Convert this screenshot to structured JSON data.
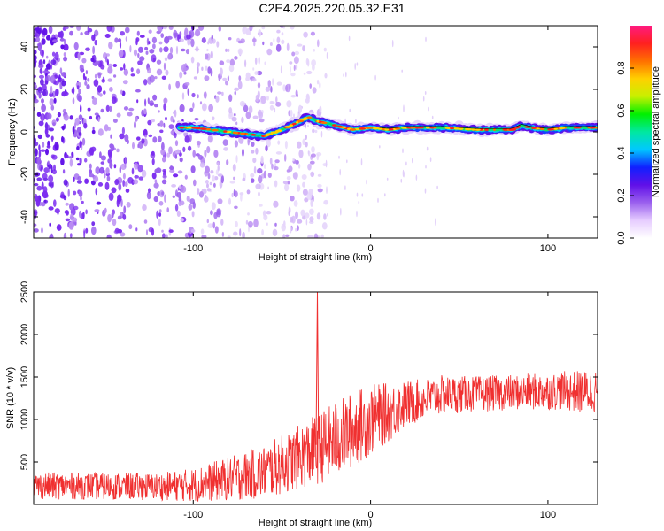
{
  "title": "C2E4.2025.220.05.32.E31",
  "chart_data": [
    {
      "type": "heatmap",
      "xlabel": "Height of straight line (km)",
      "ylabel": "Frequency (Hz)",
      "xlim": [
        -190,
        128
      ],
      "ylim": [
        -50,
        50
      ],
      "xticks": [
        -100,
        0,
        100
      ],
      "yticks": [
        -40,
        -20,
        0,
        20,
        40
      ],
      "colorbar": {
        "label": "Normalized spectral amplitude",
        "range": [
          0,
          1
        ],
        "ticks": [
          0.0,
          0.2,
          0.4,
          0.6,
          0.8
        ],
        "colormap": [
          "#ffffff",
          "#e6ccff",
          "#9a60ee",
          "#6010e8",
          "#1020ff",
          "#00c8ff",
          "#00e8a0",
          "#00f000",
          "#c8f000",
          "#ffd000",
          "#ff7000",
          "#ff2020",
          "#ff1a80"
        ]
      },
      "noise_region_x": [
        -190,
        -55
      ],
      "ridge": {
        "x": [
          -108,
          -100,
          -90,
          -80,
          -70,
          -60,
          -50,
          -40,
          -35,
          -30,
          -25,
          -20,
          -10,
          0,
          10,
          20,
          40,
          60,
          80,
          85,
          90,
          100,
          110,
          128
        ],
        "y": [
          2,
          2,
          1,
          0,
          -1,
          -2,
          1,
          5,
          7,
          5,
          4,
          3,
          1,
          2,
          1,
          2,
          2,
          1,
          1,
          3,
          2,
          1,
          2,
          2
        ]
      }
    },
    {
      "type": "line",
      "xlabel": "Height of straight line (km)",
      "ylabel": "SNR (10 * v/v)",
      "xlim": [
        -190,
        128
      ],
      "ylim": [
        0,
        2500
      ],
      "xticks": [
        -100,
        0,
        100
      ],
      "yticks": [
        500,
        1000,
        1500,
        2000,
        2500
      ],
      "line_color": "#f03030",
      "envelope": {
        "x": [
          -190,
          -120,
          -100,
          -80,
          -60,
          -40,
          -30,
          -20,
          -10,
          0,
          10,
          20,
          30,
          40,
          60,
          80,
          100,
          110,
          120,
          128
        ],
        "mean": [
          220,
          210,
          230,
          300,
          380,
          560,
          650,
          760,
          880,
          1000,
          1080,
          1180,
          1240,
          1290,
          1300,
          1320,
          1330,
          1340,
          1320,
          1340
        ],
        "spread": [
          160,
          160,
          200,
          260,
          320,
          380,
          420,
          450,
          450,
          420,
          350,
          280,
          240,
          230,
          210,
          210,
          220,
          230,
          260,
          250
        ]
      },
      "spike": {
        "x": -30,
        "y": 2500
      }
    }
  ]
}
